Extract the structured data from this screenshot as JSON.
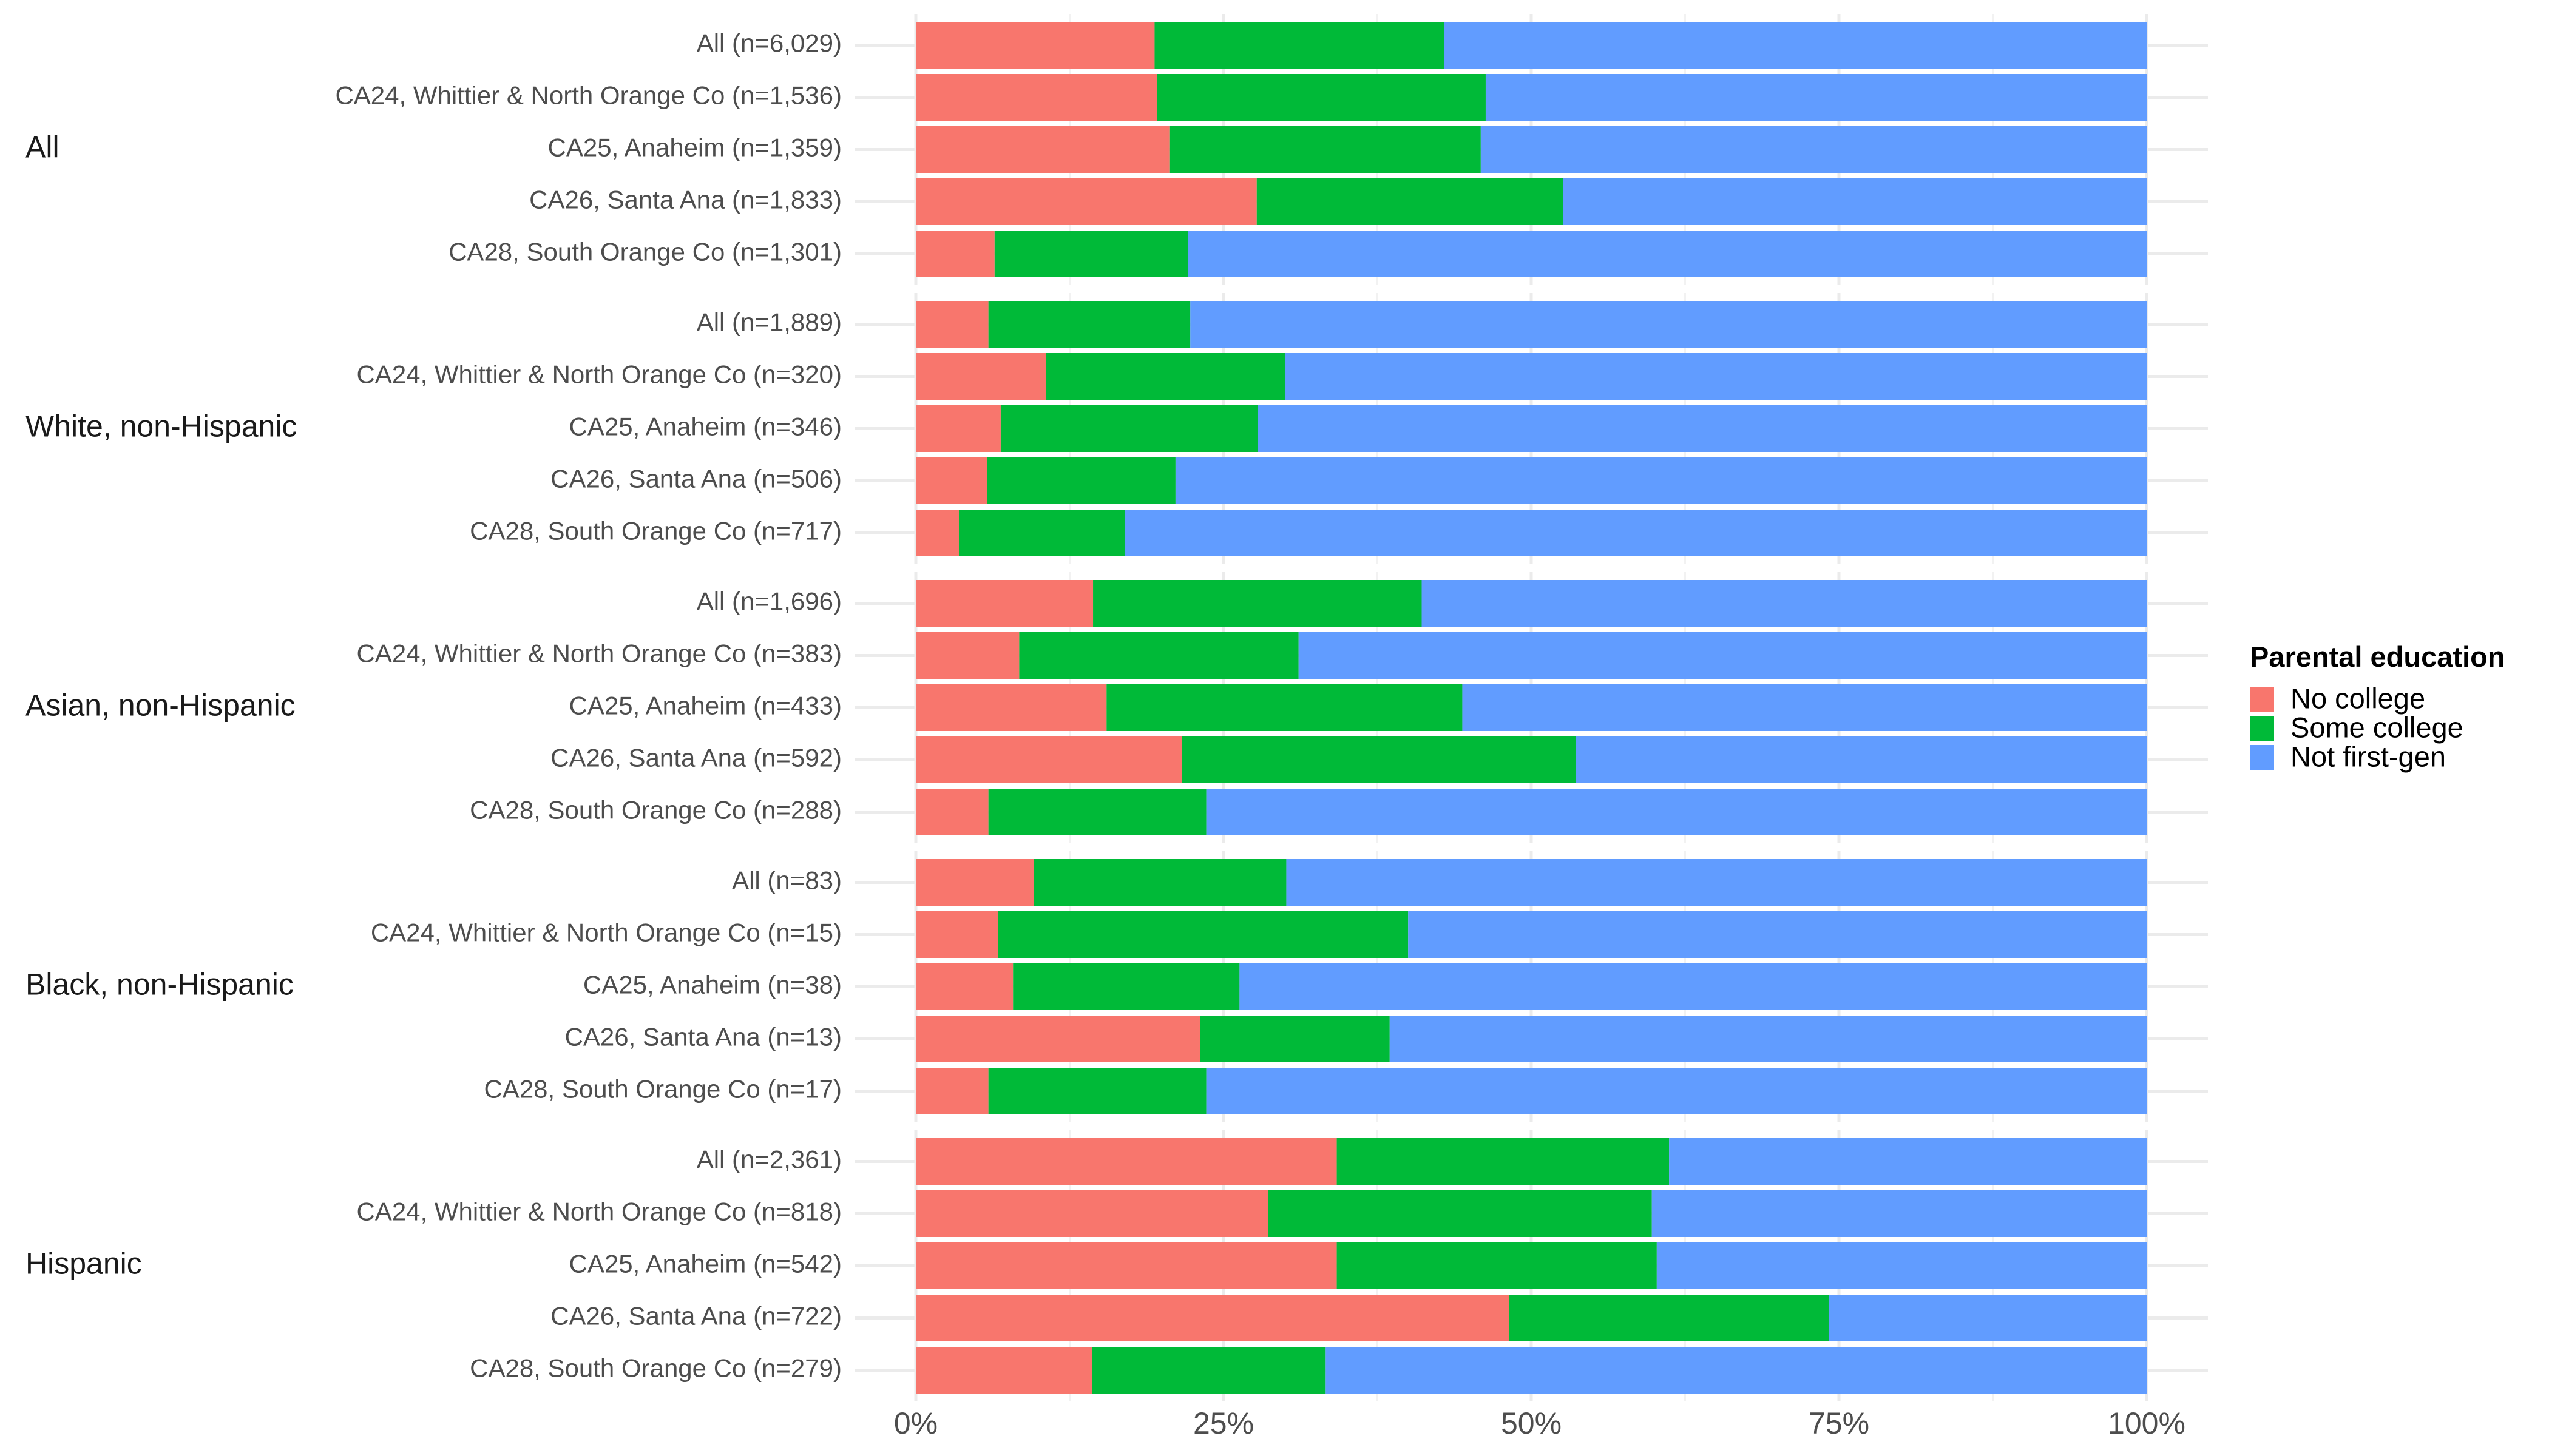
{
  "chart_data": {
    "type": "bar",
    "orientation": "horizontal",
    "stacked": "percent",
    "title": "",
    "xlabel": "",
    "ylabel": "",
    "xlim": [
      0,
      100
    ],
    "x_ticks": [
      0,
      25,
      50,
      75,
      100
    ],
    "x_tick_labels": [
      "0%",
      "25%",
      "50%",
      "75%",
      "100%"
    ],
    "grid": true,
    "legend": {
      "title": "Parental education",
      "position": "right",
      "entries": [
        {
          "name": "No college",
          "color": "#F8766D"
        },
        {
          "name": "Some college",
          "color": "#00BA38"
        },
        {
          "name": "Not first-gen",
          "color": "#619CFF"
        }
      ]
    },
    "series_names": [
      "No college",
      "Some college",
      "Not first-gen"
    ],
    "groups": [
      {
        "label": "All",
        "rows": [
          {
            "label": "All (n=6,029)",
            "values": [
              19.4,
              23.5,
              57.1
            ]
          },
          {
            "label": "CA24, Whittier & North Orange Co (n=1,536)",
            "values": [
              19.6,
              26.7,
              53.7
            ]
          },
          {
            "label": "CA25, Anaheim (n=1,359)",
            "values": [
              20.6,
              25.3,
              54.1
            ]
          },
          {
            "label": "CA26, Santa Ana (n=1,833)",
            "values": [
              27.7,
              24.9,
              47.4
            ]
          },
          {
            "label": "CA28, South Orange Co (n=1,301)",
            "values": [
              6.4,
              15.7,
              77.9
            ]
          }
        ]
      },
      {
        "label": "White, non-Hispanic",
        "rows": [
          {
            "label": "All (n=1,889)",
            "values": [
              5.9,
              16.4,
              77.7
            ]
          },
          {
            "label": "CA24, Whittier & North Orange Co (n=320)",
            "values": [
              10.6,
              19.4,
              70.0
            ]
          },
          {
            "label": "CA25, Anaheim (n=346)",
            "values": [
              6.9,
              20.9,
              72.2
            ]
          },
          {
            "label": "CA26, Santa Ana (n=506)",
            "values": [
              5.8,
              15.3,
              78.9
            ]
          },
          {
            "label": "CA28, South Orange Co (n=717)",
            "values": [
              3.5,
              13.5,
              83.0
            ]
          }
        ]
      },
      {
        "label": "Asian, non-Hispanic",
        "rows": [
          {
            "label": "All (n=1,696)",
            "values": [
              14.4,
              26.7,
              58.9
            ]
          },
          {
            "label": "CA24, Whittier & North Orange Co (n=383)",
            "values": [
              8.4,
              22.7,
              68.9
            ]
          },
          {
            "label": "CA25, Anaheim (n=433)",
            "values": [
              15.5,
              28.9,
              55.6
            ]
          },
          {
            "label": "CA26, Santa Ana (n=592)",
            "values": [
              21.6,
              32.0,
              46.4
            ]
          },
          {
            "label": "CA28, South Orange Co (n=288)",
            "values": [
              5.9,
              17.7,
              76.4
            ]
          }
        ]
      },
      {
        "label": "Black, non-Hispanic",
        "rows": [
          {
            "label": "All (n=83)",
            "values": [
              9.6,
              20.5,
              69.9
            ]
          },
          {
            "label": "CA24, Whittier & North Orange Co (n=15)",
            "values": [
              6.7,
              33.3,
              60.0
            ]
          },
          {
            "label": "CA25, Anaheim (n=38)",
            "values": [
              7.9,
              18.4,
              73.7
            ]
          },
          {
            "label": "CA26, Santa Ana (n=13)",
            "values": [
              23.1,
              15.4,
              61.5
            ]
          },
          {
            "label": "CA28, South Orange Co (n=17)",
            "values": [
              5.9,
              17.7,
              76.4
            ]
          }
        ]
      },
      {
        "label": "Hispanic",
        "rows": [
          {
            "label": "All (n=2,361)",
            "values": [
              34.2,
              27.0,
              38.8
            ]
          },
          {
            "label": "CA24, Whittier & North Orange Co (n=818)",
            "values": [
              28.6,
              31.2,
              40.2
            ]
          },
          {
            "label": "CA25, Anaheim (n=542)",
            "values": [
              34.2,
              26.0,
              39.8
            ]
          },
          {
            "label": "CA26, Santa Ana (n=722)",
            "values": [
              48.2,
              26.0,
              25.8
            ]
          },
          {
            "label": "CA28, South Orange Co (n=279)",
            "values": [
              14.3,
              19.0,
              66.7
            ]
          }
        ]
      }
    ]
  },
  "colors": {
    "grid_major": "#EBEBEB",
    "grid_minor": "#F2F2F2",
    "background": "#FFFFFF"
  }
}
